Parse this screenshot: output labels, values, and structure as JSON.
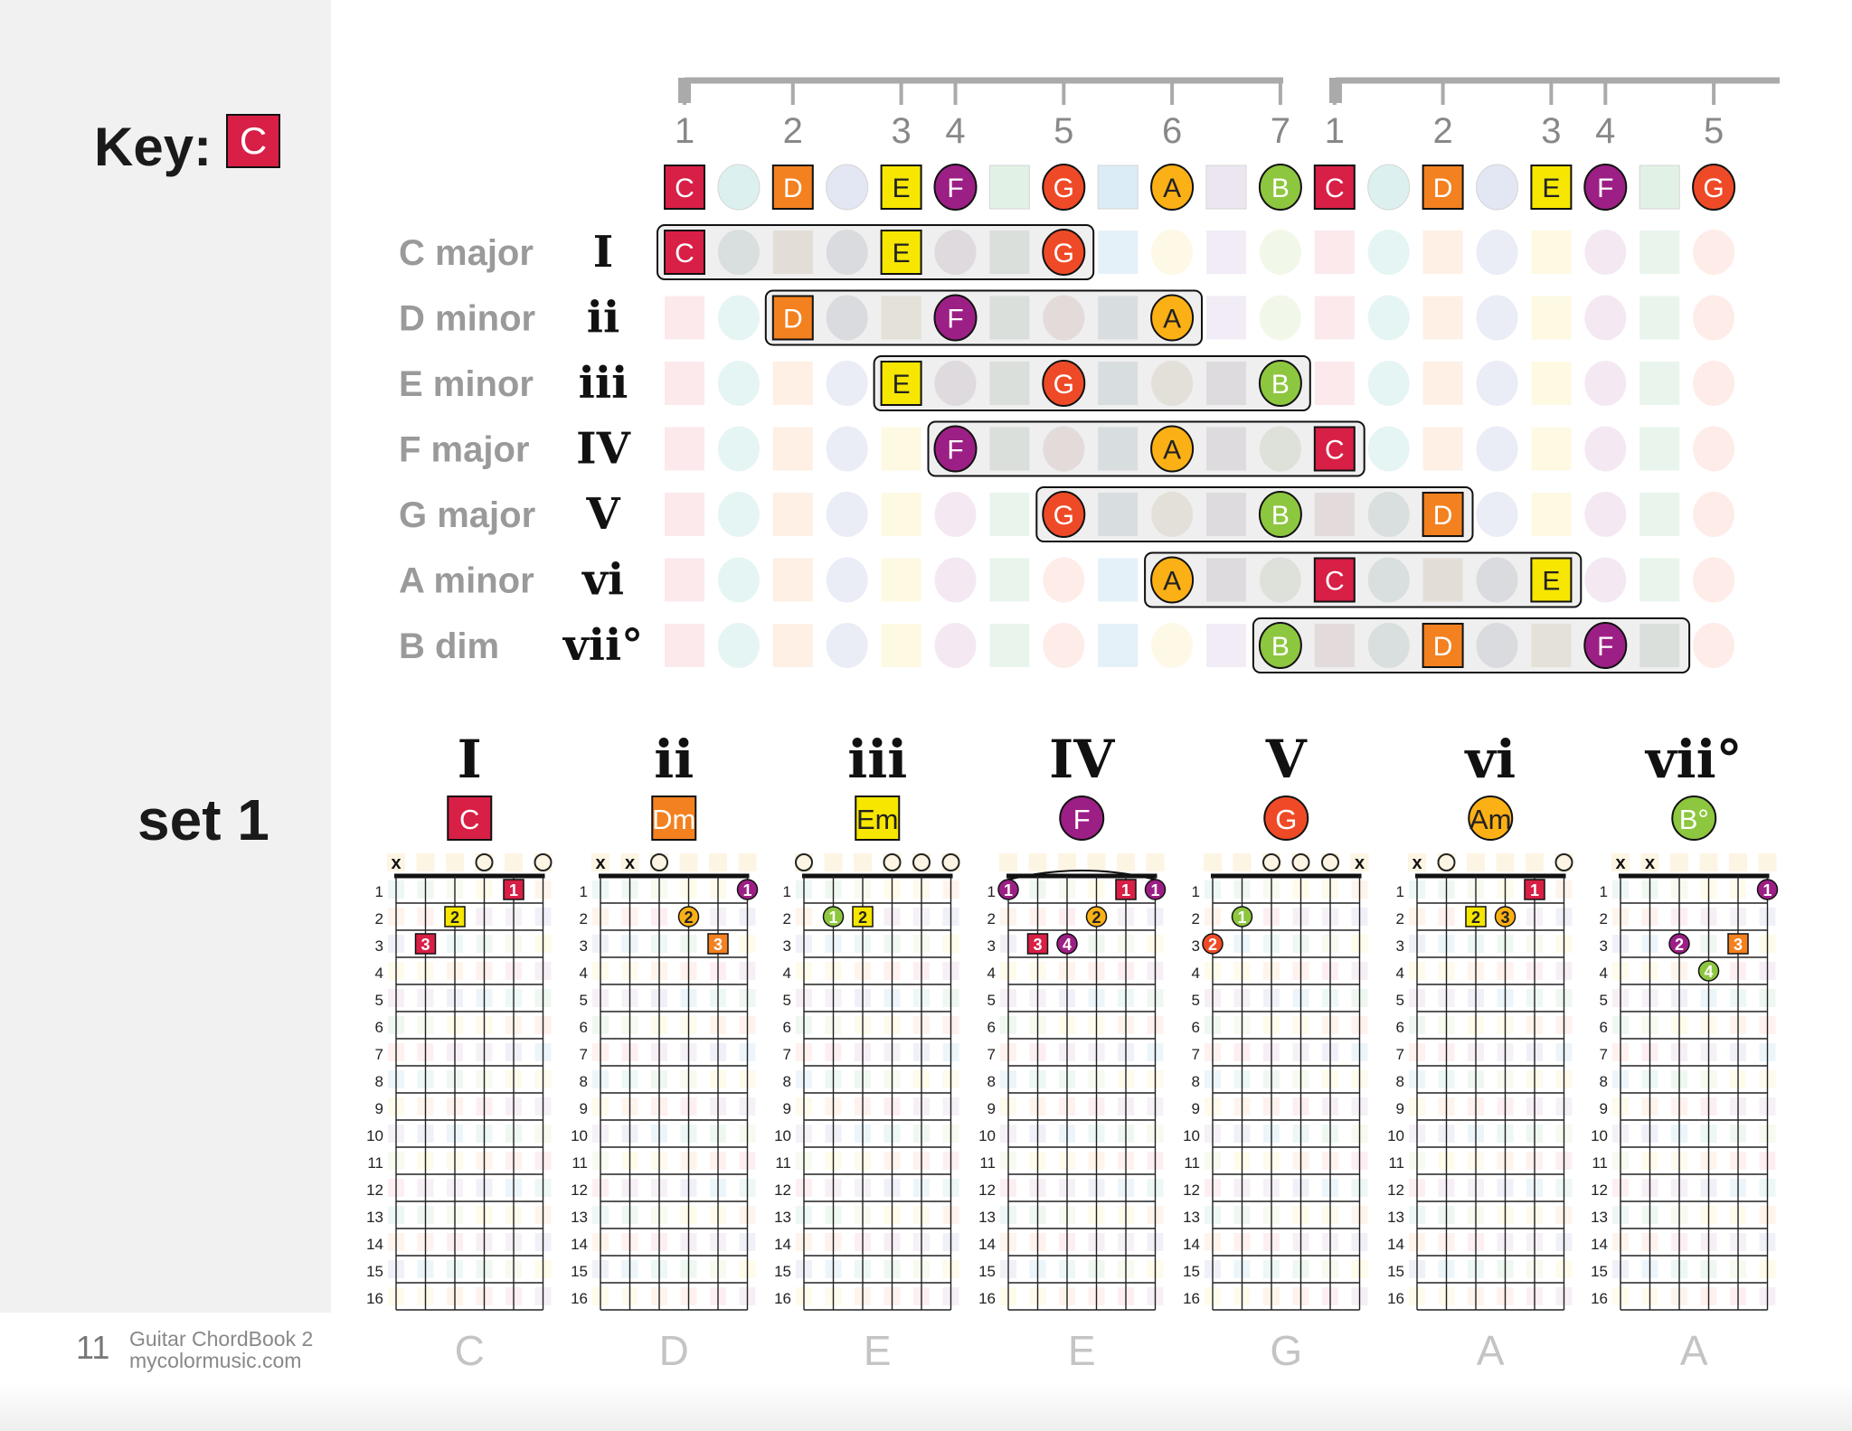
{
  "page": {
    "key_label": "Key:",
    "key_note": "C",
    "set_label": "set 1",
    "page_number": "11",
    "book_title": "Guitar ChordBook 2",
    "website": "mycolormusic.com"
  },
  "note_colors": {
    "C": "#d81f46",
    "D": "#f38120",
    "E": "#f6e600",
    "F": "#9c1f85",
    "G": "#ef4a27",
    "A": "#fbb016",
    "B": "#8dc63f"
  },
  "pastel_colors": [
    "#fbe1e5",
    "#dcf1ef",
    "#fdebdc",
    "#e3e6f3",
    "#fdf7d9",
    "#f0e2ef",
    "#e2f1e5",
    "#fde6e0",
    "#dcecf6",
    "#fef5dd",
    "#ece6f1",
    "#eef5e1"
  ],
  "degree_ruler": {
    "numbers": [
      "1",
      "2",
      "3",
      "4",
      "5",
      "6",
      "7",
      "1",
      "2",
      "3",
      "4",
      "5"
    ]
  },
  "scale_row": [
    "C",
    "",
    "D",
    "",
    "E",
    "F",
    "",
    "G",
    "",
    "A",
    "",
    "B",
    "C",
    "",
    "D",
    "",
    "E",
    "F",
    "",
    "G"
  ],
  "chord_rows": [
    {
      "name": "C major",
      "numeral": "I",
      "notes": [
        "C",
        "E",
        "G"
      ]
    },
    {
      "name": "D minor",
      "numeral": "ii",
      "notes": [
        "D",
        "F",
        "A"
      ]
    },
    {
      "name": "E minor",
      "numeral": "iii",
      "notes": [
        "E",
        "G",
        "B"
      ]
    },
    {
      "name": "F major",
      "numeral": "IV",
      "notes": [
        "F",
        "A",
        "C"
      ]
    },
    {
      "name": "G major",
      "numeral": "V",
      "notes": [
        "G",
        "B",
        "D"
      ]
    },
    {
      "name": "A minor",
      "numeral": "vi",
      "notes": [
        "A",
        "C",
        "E"
      ]
    },
    {
      "name": "B dim",
      "numeral": "vii°",
      "notes": [
        "B",
        "D",
        "F"
      ]
    }
  ],
  "fret_numbers": [
    "1",
    "2",
    "3",
    "4",
    "5",
    "6",
    "7",
    "8",
    "9",
    "10",
    "11",
    "12",
    "13",
    "14",
    "15",
    "16"
  ],
  "chord_diagrams": [
    {
      "numeral": "I",
      "chord": "C",
      "root": "C",
      "bottom": "C",
      "top": [
        "x",
        "",
        "",
        "o",
        "",
        "o"
      ],
      "fingers": [
        {
          "fret": 1,
          "string": 4,
          "n": "1",
          "note": "C"
        },
        {
          "fret": 2,
          "string": 2,
          "n": "2",
          "note": "E"
        },
        {
          "fret": 3,
          "string": 1,
          "n": "3",
          "note": "C"
        }
      ]
    },
    {
      "numeral": "ii",
      "chord": "Dm",
      "root": "D",
      "bottom": "D",
      "top": [
        "x",
        "x",
        "o",
        "",
        "",
        ""
      ],
      "fingers": [
        {
          "fret": 1,
          "string": 5,
          "n": "1",
          "note": "F"
        },
        {
          "fret": 2,
          "string": 3,
          "n": "2",
          "note": "A"
        },
        {
          "fret": 3,
          "string": 4,
          "n": "3",
          "note": "D"
        }
      ]
    },
    {
      "numeral": "iii",
      "chord": "Em",
      "root": "E",
      "bottom": "E",
      "top": [
        "o",
        "",
        "",
        "o",
        "o",
        "o"
      ],
      "fingers": [
        {
          "fret": 2,
          "string": 1,
          "n": "1",
          "note": "B"
        },
        {
          "fret": 2,
          "string": 2,
          "n": "2",
          "note": "E"
        }
      ]
    },
    {
      "numeral": "IV",
      "chord": "F",
      "root": "F",
      "bottom": "E",
      "top": [
        "",
        "",
        "",
        "",
        "",
        ""
      ],
      "barre": true,
      "fingers": [
        {
          "fret": 1,
          "string": 0,
          "n": "1",
          "note": "F"
        },
        {
          "fret": 1,
          "string": 4,
          "n": "1",
          "note": "C"
        },
        {
          "fret": 1,
          "string": 5,
          "n": "1",
          "note": "F"
        },
        {
          "fret": 2,
          "string": 3,
          "n": "2",
          "note": "A"
        },
        {
          "fret": 3,
          "string": 1,
          "n": "3",
          "note": "C"
        },
        {
          "fret": 3,
          "string": 2,
          "n": "4",
          "note": "F"
        }
      ]
    },
    {
      "numeral": "V",
      "chord": "G",
      "root": "G",
      "bottom": "G",
      "top": [
        "",
        "",
        "o",
        "o",
        "o",
        "x"
      ],
      "fingers": [
        {
          "fret": 2,
          "string": 1,
          "n": "1",
          "note": "B"
        },
        {
          "fret": 3,
          "string": 0,
          "n": "2",
          "note": "G"
        }
      ]
    },
    {
      "numeral": "vi",
      "chord": "Am",
      "root": "A",
      "bottom": "A",
      "top": [
        "x",
        "o",
        "",
        "",
        "",
        "o"
      ],
      "fingers": [
        {
          "fret": 1,
          "string": 4,
          "n": "1",
          "note": "C"
        },
        {
          "fret": 2,
          "string": 2,
          "n": "2",
          "note": "E"
        },
        {
          "fret": 2,
          "string": 3,
          "n": "3",
          "note": "A"
        }
      ]
    },
    {
      "numeral": "vii°",
      "chord": "B°",
      "root": "B",
      "bottom": "A",
      "top": [
        "x",
        "x",
        "",
        "",
        "",
        ""
      ],
      "fingers": [
        {
          "fret": 1,
          "string": 5,
          "n": "1",
          "note": "F"
        },
        {
          "fret": 3,
          "string": 2,
          "n": "2",
          "note": "F"
        },
        {
          "fret": 3,
          "string": 4,
          "n": "3",
          "note": "D"
        },
        {
          "fret": 4,
          "string": 3,
          "n": "4",
          "note": "B"
        }
      ]
    }
  ]
}
